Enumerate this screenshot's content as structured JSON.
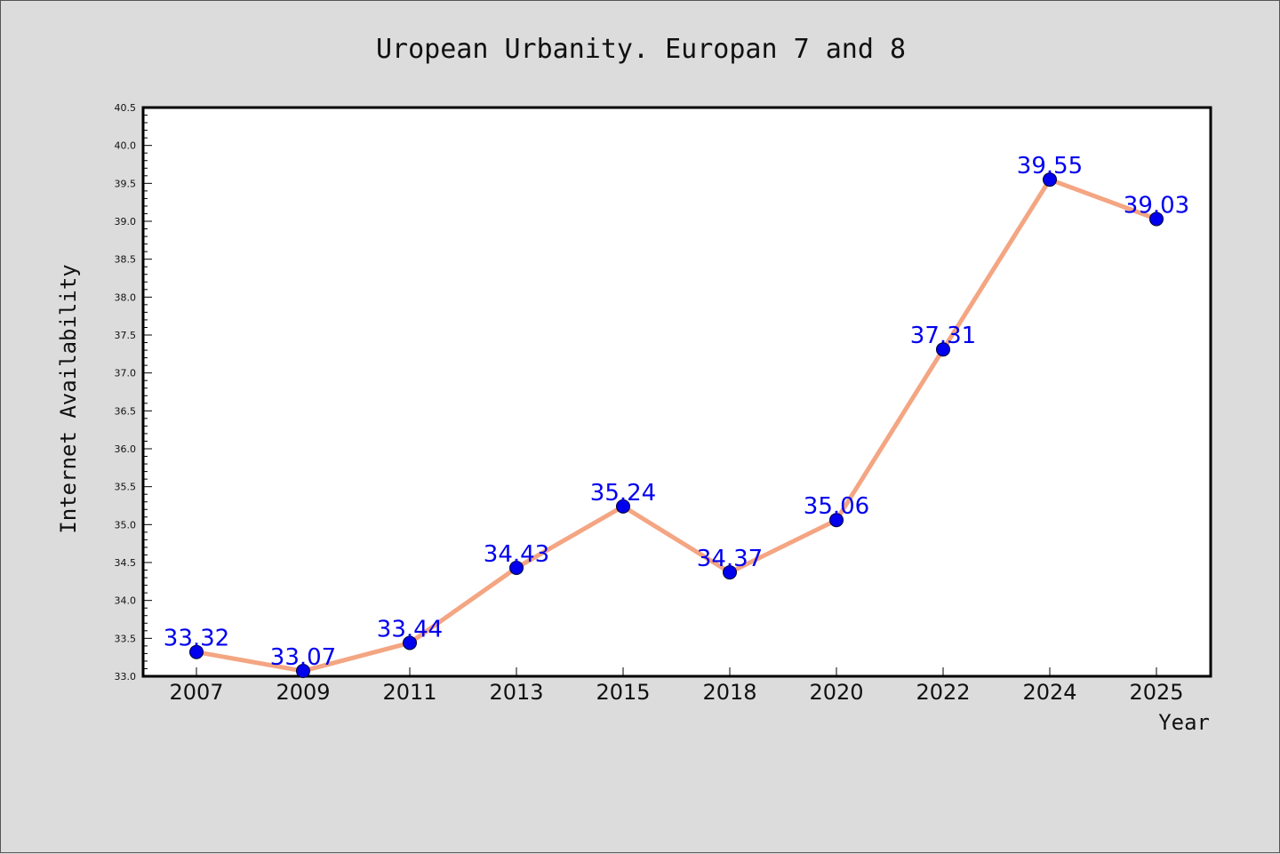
{
  "chart_data": {
    "type": "line",
    "title": "Uropean Urbanity. Europan 7 and 8",
    "xlabel": "Year",
    "ylabel": "Internet Availability",
    "categories": [
      "2007",
      "2009",
      "2011",
      "2013",
      "2015",
      "2018",
      "2020",
      "2022",
      "2024",
      "2025"
    ],
    "series": [
      {
        "values": [
          33.32,
          33.07,
          33.44,
          34.43,
          35.24,
          34.37,
          35.06,
          37.31,
          39.55,
          39.03
        ],
        "data_labels": [
          "33.32",
          "33.07",
          "33.44",
          "34.43",
          "35.24",
          "34.37",
          "35.06",
          "37.31",
          "39.55",
          "39.03"
        ],
        "line_color": "#f4a582",
        "marker_color": "#0000ee",
        "label_color": "#0000ee"
      }
    ],
    "ylim": [
      33.0,
      40.5
    ],
    "yticks": [
      "33.0",
      "33.5",
      "34.0",
      "34.5",
      "35.0",
      "35.5",
      "36.0",
      "36.5",
      "37.0",
      "37.5",
      "38.0",
      "38.5",
      "39.0",
      "39.5",
      "40.0",
      "40.5"
    ],
    "grid": false,
    "legend": "none",
    "colors": {
      "background": "#dcdcdc",
      "plot_area": "#ffffff",
      "frame": "#000000"
    }
  }
}
